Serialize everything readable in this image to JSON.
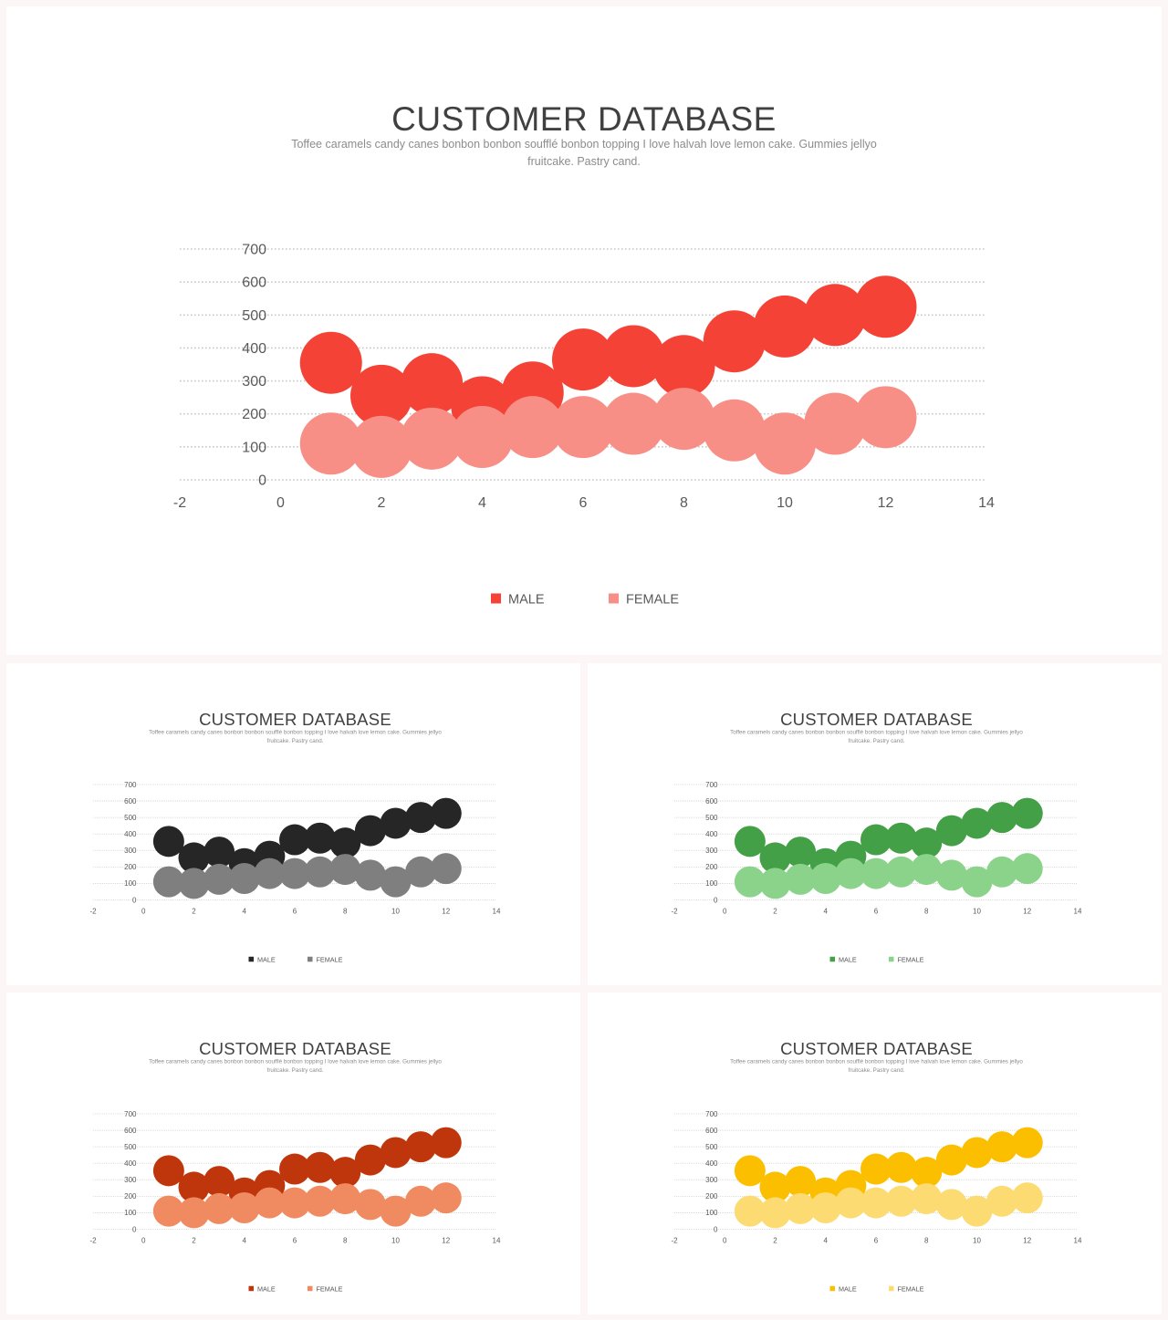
{
  "slides": [
    {
      "title": "CUSTOMER DATABASE",
      "subtitle": "Toffee caramels candy canes bonbon bonbon soufflé bonbon topping I love halvah love lemon cake. Gummies jellyo fruitcake. Pastry cand.",
      "male_color": "#f44336",
      "female_color": "#f78f87"
    },
    {
      "title": "CUSTOMER DATABASE",
      "subtitle": "Toffee caramels candy canes bonbon bonbon soufflé bonbon topping I love halvah love lemon cake. Gummies jellyo fruitcake. Pastry cand.",
      "male_color": "#262626",
      "female_color": "#7f7f7f"
    },
    {
      "title": "CUSTOMER DATABASE",
      "subtitle": "Toffee caramels candy canes bonbon bonbon soufflé bonbon topping I love halvah love lemon cake. Gummies jellyo fruitcake. Pastry cand.",
      "male_color": "#43a047",
      "female_color": "#8bd38b"
    },
    {
      "title": "CUSTOMER DATABASE",
      "subtitle": "Toffee caramels candy canes bonbon bonbon soufflé bonbon topping I love halvah love lemon cake. Gummies jellyo fruitcake. Pastry cand.",
      "male_color": "#c0360c",
      "female_color": "#f08a60"
    },
    {
      "title": "CUSTOMER DATABASE",
      "subtitle": "Toffee caramels candy canes bonbon bonbon soufflé bonbon topping I love halvah love lemon cake. Gummies jellyo fruitcake. Pastry cand.",
      "male_color": "#fbbf00",
      "female_color": "#fbdb72"
    }
  ],
  "chart_data": {
    "type": "scatter",
    "title": "CUSTOMER DATABASE",
    "xlim": [
      -2,
      14
    ],
    "ylim": [
      0,
      700
    ],
    "x_ticks": [
      -2,
      0,
      2,
      4,
      6,
      8,
      10,
      12,
      14
    ],
    "y_ticks": [
      0,
      100,
      200,
      300,
      400,
      500,
      600,
      700
    ],
    "x_tick_labels": [
      "-2",
      "0",
      "2",
      "4",
      "6",
      "8",
      "10",
      "12",
      "14"
    ],
    "y_tick_labels": [
      "0",
      "100",
      "200",
      "300",
      "400",
      "500",
      "600",
      "700"
    ],
    "grid": true,
    "legend_position": "bottom",
    "series": [
      {
        "name": "MALE",
        "x": [
          1,
          2,
          3,
          4,
          5,
          6,
          7,
          8,
          9,
          10,
          11,
          12
        ],
        "y": [
          355,
          255,
          290,
          220,
          265,
          365,
          375,
          345,
          420,
          465,
          500,
          525
        ]
      },
      {
        "name": "FEMALE",
        "x": [
          1,
          2,
          3,
          4,
          5,
          6,
          7,
          8,
          9,
          10,
          11,
          12
        ],
        "y": [
          110,
          100,
          125,
          130,
          160,
          160,
          170,
          185,
          150,
          110,
          170,
          190
        ]
      }
    ]
  }
}
